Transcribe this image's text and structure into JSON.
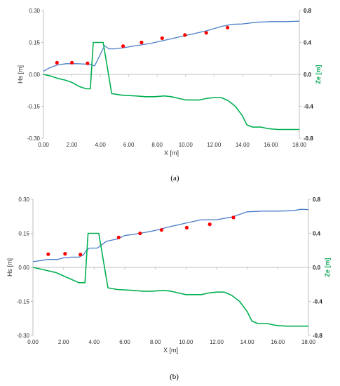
{
  "chart_data": [
    {
      "type": "line",
      "caption": "(a)",
      "xlabel": "X [m]",
      "ylabel_left": "Hs [m]",
      "ylabel_right": "Ze [m]",
      "xlim": [
        0,
        18
      ],
      "ylim_left": [
        -0.3,
        0.3
      ],
      "ylim_right": [
        -0.8,
        0.8
      ],
      "x_ticks": [
        "0.00",
        "2.00",
        "4.00",
        "6.00",
        "8.00",
        "10.00",
        "12.00",
        "14.00",
        "16.00",
        "18.00"
      ],
      "y_left_ticks": [
        "-0.30",
        "-0.15",
        "0.00",
        "0.15",
        "0.30"
      ],
      "y_right_ticks": [
        "-0.8",
        "-0.4",
        "0.0",
        "0.4",
        "0.8"
      ],
      "grid": false,
      "series": [
        {
          "axis": "left",
          "color": "#4a7dc9",
          "style": "line",
          "points": [
            [
              0,
              0.015
            ],
            [
              0.4,
              0.03
            ],
            [
              1.0,
              0.045
            ],
            [
              1.6,
              0.05
            ],
            [
              2.4,
              0.05
            ],
            [
              3.0,
              0.048
            ],
            [
              3.4,
              0.045
            ],
            [
              3.6,
              0.04
            ],
            [
              4.3,
              0.135
            ],
            [
              4.6,
              0.12
            ],
            [
              5.0,
              0.12
            ],
            [
              5.6,
              0.125
            ],
            [
              6.5,
              0.135
            ],
            [
              7.5,
              0.145
            ],
            [
              8.5,
              0.16
            ],
            [
              9.5,
              0.175
            ],
            [
              10.5,
              0.19
            ],
            [
              11.5,
              0.205
            ],
            [
              12.5,
              0.225
            ],
            [
              13.2,
              0.235
            ],
            [
              14.0,
              0.237
            ],
            [
              15.0,
              0.245
            ],
            [
              16.0,
              0.248
            ],
            [
              17.0,
              0.248
            ],
            [
              18.0,
              0.25
            ]
          ]
        },
        {
          "axis": "left",
          "color": "#ff0000",
          "style": "points",
          "points": [
            [
              0.95,
              0.055
            ],
            [
              2.0,
              0.055
            ],
            [
              3.1,
              0.052
            ],
            [
              5.6,
              0.133
            ],
            [
              6.9,
              0.15
            ],
            [
              8.35,
              0.17
            ],
            [
              9.95,
              0.185
            ],
            [
              11.45,
              0.195
            ],
            [
              12.95,
              0.22
            ]
          ]
        },
        {
          "axis": "right",
          "color": "#00b050",
          "style": "line",
          "points": [
            [
              0,
              0.0
            ],
            [
              0.5,
              -0.02
            ],
            [
              1.0,
              -0.05
            ],
            [
              1.5,
              -0.07
            ],
            [
              2.0,
              -0.1
            ],
            [
              2.5,
              -0.15
            ],
            [
              3.0,
              -0.18
            ],
            [
              3.3,
              -0.18
            ],
            [
              3.5,
              0.4
            ],
            [
              4.2,
              0.4
            ],
            [
              4.8,
              -0.24
            ],
            [
              5.5,
              -0.26
            ],
            [
              6.5,
              -0.27
            ],
            [
              7.2,
              -0.28
            ],
            [
              7.8,
              -0.28
            ],
            [
              8.5,
              -0.27
            ],
            [
              9.0,
              -0.28
            ],
            [
              9.5,
              -0.3
            ],
            [
              10.0,
              -0.32
            ],
            [
              11.0,
              -0.32
            ],
            [
              11.5,
              -0.3
            ],
            [
              12.0,
              -0.29
            ],
            [
              12.5,
              -0.29
            ],
            [
              13.0,
              -0.33
            ],
            [
              13.5,
              -0.4
            ],
            [
              14.0,
              -0.52
            ],
            [
              14.3,
              -0.63
            ],
            [
              14.7,
              -0.66
            ],
            [
              15.3,
              -0.66
            ],
            [
              15.8,
              -0.68
            ],
            [
              16.5,
              -0.69
            ],
            [
              18.0,
              -0.69
            ]
          ]
        }
      ]
    },
    {
      "type": "line",
      "caption": "(b)",
      "xlabel": "X [m]",
      "ylabel_left": "Hs [m]",
      "ylabel_right": "Ze [m]",
      "xlim": [
        0,
        18
      ],
      "ylim_left": [
        -0.3,
        0.3
      ],
      "ylim_right": [
        -0.8,
        0.8
      ],
      "x_ticks": [
        "0.00",
        "2.00",
        "4.00",
        "6.00",
        "8.00",
        "10.00",
        "12.00",
        "14.00",
        "16.00",
        "18.00"
      ],
      "y_left_ticks": [
        "-0.30",
        "-0.15",
        "0.00",
        "0.15",
        "0.30"
      ],
      "y_right_ticks": [
        "-0.8",
        "-0.4",
        "0.0",
        "0.4",
        "0.8"
      ],
      "grid": false,
      "series": [
        {
          "axis": "left",
          "color": "#4a7dc9",
          "style": "line",
          "points": [
            [
              0,
              0.025
            ],
            [
              0.5,
              0.03
            ],
            [
              1.0,
              0.035
            ],
            [
              1.6,
              0.035
            ],
            [
              2.0,
              0.042
            ],
            [
              2.5,
              0.045
            ],
            [
              3.0,
              0.045
            ],
            [
              3.3,
              0.055
            ],
            [
              3.5,
              0.075
            ],
            [
              3.7,
              0.085
            ],
            [
              4.2,
              0.085
            ],
            [
              4.5,
              0.1
            ],
            [
              4.8,
              0.115
            ],
            [
              5.5,
              0.125
            ],
            [
              6.0,
              0.14
            ],
            [
              7.0,
              0.15
            ],
            [
              8.0,
              0.163
            ],
            [
              9.0,
              0.18
            ],
            [
              10.0,
              0.195
            ],
            [
              11.0,
              0.21
            ],
            [
              12.0,
              0.21
            ],
            [
              13.0,
              0.222
            ],
            [
              14.0,
              0.245
            ],
            [
              15.0,
              0.248
            ],
            [
              16.0,
              0.248
            ],
            [
              17.0,
              0.25
            ],
            [
              17.5,
              0.256
            ],
            [
              18.0,
              0.255
            ]
          ]
        },
        {
          "axis": "left",
          "color": "#ff0000",
          "style": "points",
          "points": [
            [
              1.0,
              0.058
            ],
            [
              2.1,
              0.06
            ],
            [
              3.1,
              0.057
            ],
            [
              5.6,
              0.132
            ],
            [
              7.0,
              0.15
            ],
            [
              8.4,
              0.165
            ],
            [
              10.05,
              0.175
            ],
            [
              11.55,
              0.19
            ],
            [
              13.1,
              0.22
            ]
          ]
        },
        {
          "axis": "right",
          "color": "#00b050",
          "style": "line",
          "points": [
            [
              0,
              0.0
            ],
            [
              0.5,
              -0.02
            ],
            [
              1.0,
              -0.04
            ],
            [
              1.5,
              -0.06
            ],
            [
              2.0,
              -0.1
            ],
            [
              2.5,
              -0.14
            ],
            [
              3.0,
              -0.18
            ],
            [
              3.4,
              -0.18
            ],
            [
              3.6,
              0.4
            ],
            [
              4.3,
              0.4
            ],
            [
              4.9,
              -0.24
            ],
            [
              5.5,
              -0.26
            ],
            [
              6.5,
              -0.27
            ],
            [
              7.2,
              -0.28
            ],
            [
              7.8,
              -0.28
            ],
            [
              8.5,
              -0.27
            ],
            [
              9.0,
              -0.28
            ],
            [
              9.5,
              -0.3
            ],
            [
              10.0,
              -0.32
            ],
            [
              11.0,
              -0.32
            ],
            [
              11.5,
              -0.3
            ],
            [
              12.0,
              -0.29
            ],
            [
              12.5,
              -0.29
            ],
            [
              13.0,
              -0.33
            ],
            [
              13.5,
              -0.4
            ],
            [
              14.0,
              -0.52
            ],
            [
              14.3,
              -0.63
            ],
            [
              14.7,
              -0.66
            ],
            [
              15.3,
              -0.66
            ],
            [
              15.8,
              -0.68
            ],
            [
              16.5,
              -0.69
            ],
            [
              18.0,
              -0.69
            ]
          ]
        }
      ]
    }
  ]
}
